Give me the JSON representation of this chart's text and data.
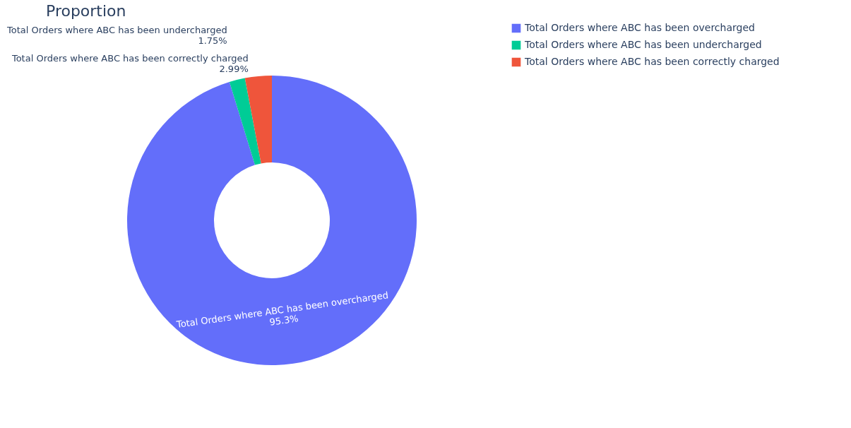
{
  "chart_data": {
    "type": "donut",
    "title": "Proportion",
    "categories": [
      "Total Orders where ABC has been overcharged",
      "Total Orders where ABC has been undercharged",
      "Total Orders where ABC has been correctly charged"
    ],
    "values": [
      95.3,
      1.75,
      2.99
    ],
    "colors": [
      "#636efa",
      "#00cc96",
      "#ef553b"
    ],
    "value_labels": [
      "95.3%",
      "1.75%",
      "2.99%"
    ],
    "legend": "top right"
  }
}
